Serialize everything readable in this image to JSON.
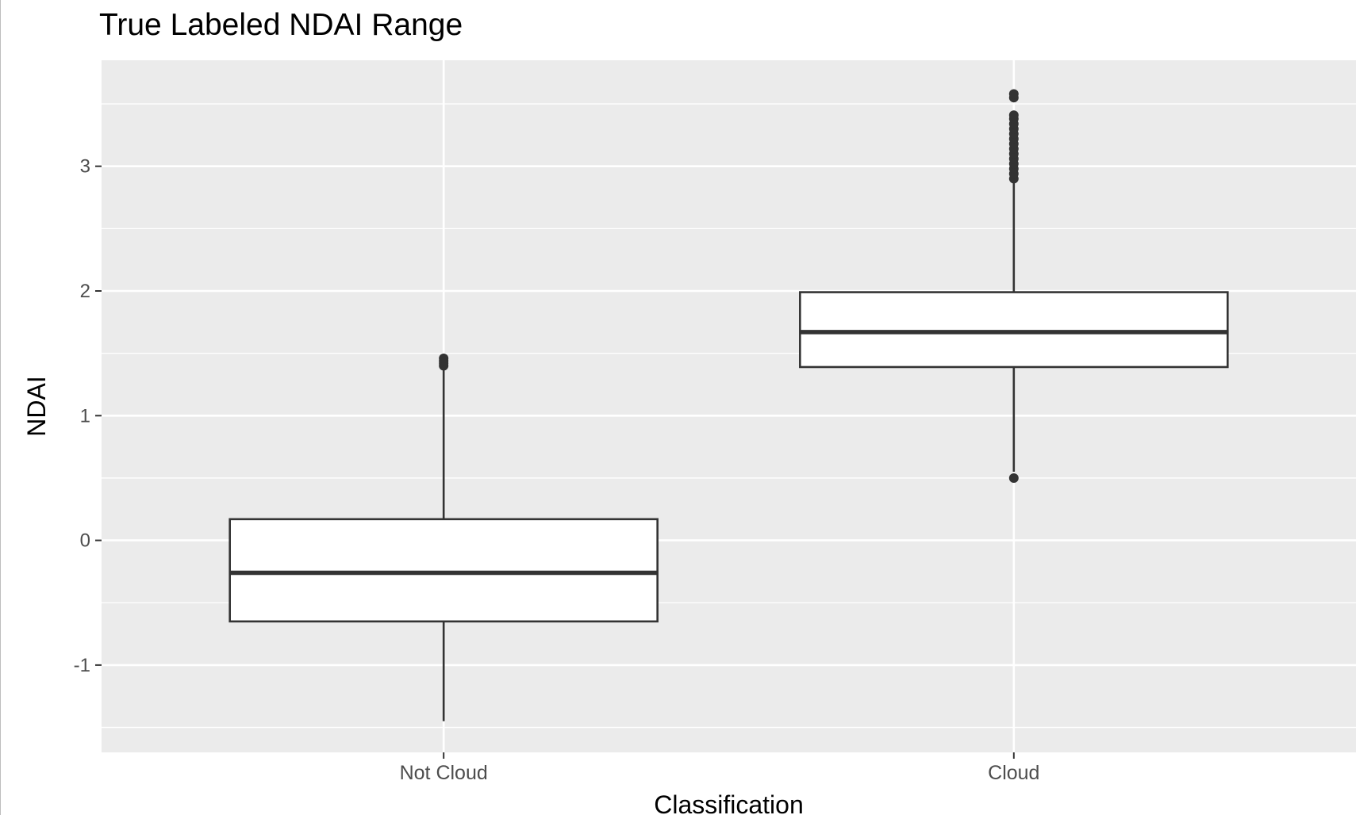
{
  "chart_data": {
    "type": "boxplot",
    "title": "True Labeled NDAI Range",
    "xlabel": "Classification",
    "ylabel": "NDAI",
    "ylim": [
      -1.7,
      3.85
    ],
    "yticks": [
      -1,
      0,
      1,
      2,
      3
    ],
    "grid": true,
    "categories": [
      "Not Cloud",
      "Cloud"
    ],
    "boxes": [
      {
        "category": "Not Cloud",
        "whisker_low": -1.45,
        "q1": -0.65,
        "median": -0.26,
        "q3": 0.17,
        "whisker_high": 1.38,
        "outliers": [
          1.4,
          1.42,
          1.44,
          1.46
        ]
      },
      {
        "category": "Cloud",
        "whisker_low": 0.55,
        "q1": 1.39,
        "median": 1.67,
        "q3": 1.99,
        "whisker_high": 2.88,
        "outliers": [
          0.5,
          2.9,
          2.94,
          2.98,
          3.02,
          3.06,
          3.1,
          3.14,
          3.18,
          3.22,
          3.26,
          3.3,
          3.34,
          3.38,
          3.41,
          3.55,
          3.58
        ]
      }
    ],
    "colors": {
      "panel": "#ebebeb",
      "grid": "#ffffff",
      "box_fill": "#ffffff",
      "box_stroke": "#333333",
      "tick_text": "#4d4d4d"
    }
  }
}
